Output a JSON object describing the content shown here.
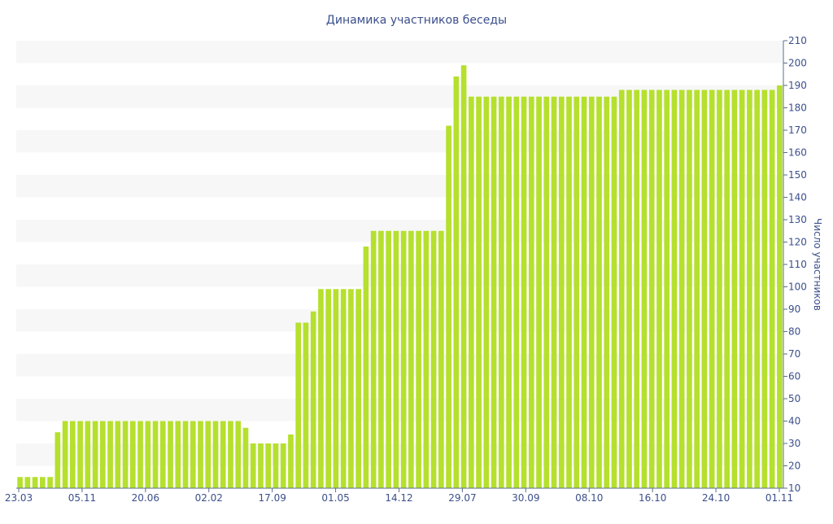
{
  "chart_data": {
    "type": "bar",
    "title": "Динамика участников беседы",
    "ylabel": "Число участников",
    "xlabel": "",
    "ylim": [
      10,
      210
    ],
    "yticks": [
      10,
      20,
      30,
      40,
      50,
      60,
      70,
      80,
      90,
      100,
      110,
      120,
      130,
      140,
      150,
      160,
      170,
      180,
      190,
      200,
      210
    ],
    "y_axis_position": "right",
    "x_tick_labels": [
      "23.03",
      "05.11",
      "20.06",
      "02.02",
      "17.09",
      "01.05",
      "14.12",
      "29.07",
      "30.09",
      "08.10",
      "16.10",
      "24.10",
      "01.11"
    ],
    "values": [
      15,
      15,
      15,
      15,
      15,
      35,
      40,
      40,
      40,
      40,
      40,
      40,
      40,
      40,
      40,
      40,
      40,
      40,
      40,
      40,
      40,
      40,
      40,
      40,
      40,
      40,
      40,
      40,
      40,
      40,
      37,
      30,
      30,
      30,
      30,
      30,
      34,
      84,
      84,
      89,
      99,
      99,
      99,
      99,
      99,
      99,
      118,
      125,
      125,
      125,
      125,
      125,
      125,
      125,
      125,
      125,
      125,
      172,
      194,
      199,
      185,
      185,
      185,
      185,
      185,
      185,
      185,
      185,
      185,
      185,
      185,
      185,
      185,
      185,
      185,
      185,
      185,
      185,
      185,
      185,
      188,
      188,
      188,
      188,
      188,
      188,
      188,
      188,
      188,
      188,
      188,
      188,
      188,
      188,
      188,
      188,
      188,
      188,
      188,
      188,
      188,
      190
    ],
    "grid": "alternating horizontal bands",
    "colors": {
      "bar": "#b5e02d",
      "band": "#f7f7f7",
      "axis": "#5a6d8c",
      "text": "#3b4f8c"
    }
  }
}
